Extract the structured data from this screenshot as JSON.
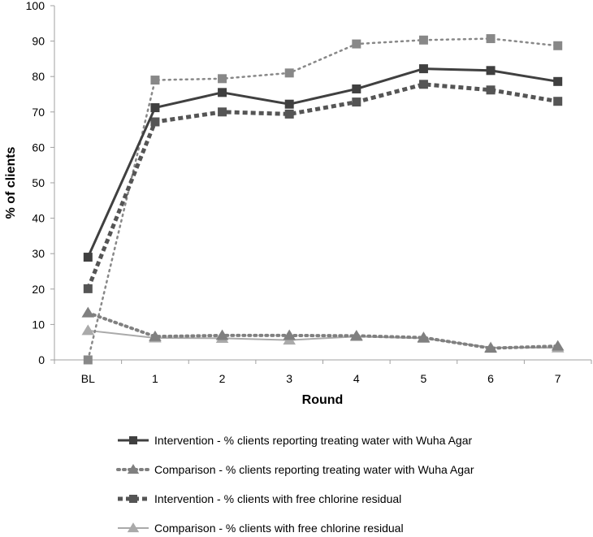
{
  "chart_data": {
    "type": "line",
    "title": "",
    "xlabel": "Round",
    "ylabel": "% of clients",
    "ylim": [
      0,
      100
    ],
    "yticks": [
      0,
      10,
      20,
      30,
      40,
      50,
      60,
      70,
      80,
      90,
      100
    ],
    "categories": [
      "BL",
      "1",
      "2",
      "3",
      "4",
      "5",
      "6",
      "7"
    ],
    "grid": false,
    "legend_position": "bottom",
    "series": [
      {
        "name": "Intervention - % clients reporting treating water with Wuha Agar",
        "values": [
          29,
          71.2,
          75.5,
          72.2,
          76.5,
          82.2,
          81.7,
          78.6
        ],
        "color": "#404040",
        "line_style": "solid",
        "marker": "square"
      },
      {
        "name": "Comparison - % clients reporting treating water with Wuha Agar",
        "values": [
          13.3,
          6.6,
          6.9,
          6.9,
          6.8,
          6.3,
          3.3,
          3.9
        ],
        "color": "#808080",
        "line_style": "dotted",
        "marker": "triangle"
      },
      {
        "name": "Intervention - % clients with free chlorine residual",
        "values": [
          20.1,
          67.2,
          70.0,
          69.4,
          72.8,
          77.8,
          76.2,
          73.0
        ],
        "color": "#555555",
        "line_style": "dashed",
        "marker": "square"
      },
      {
        "name": "Comparison - % clients with free chlorine residual",
        "values": [
          8.3,
          6.2,
          6.1,
          5.6,
          6.6,
          6.1,
          3.5,
          3.4
        ],
        "color": "#aaaaaa",
        "line_style": "solid",
        "marker": "triangle"
      },
      {
        "name": "",
        "values": [
          0,
          79,
          79.4,
          81,
          89.2,
          90.3,
          90.7,
          88.7
        ],
        "color": "#888888",
        "line_style": "dotted",
        "marker": "square"
      }
    ]
  }
}
